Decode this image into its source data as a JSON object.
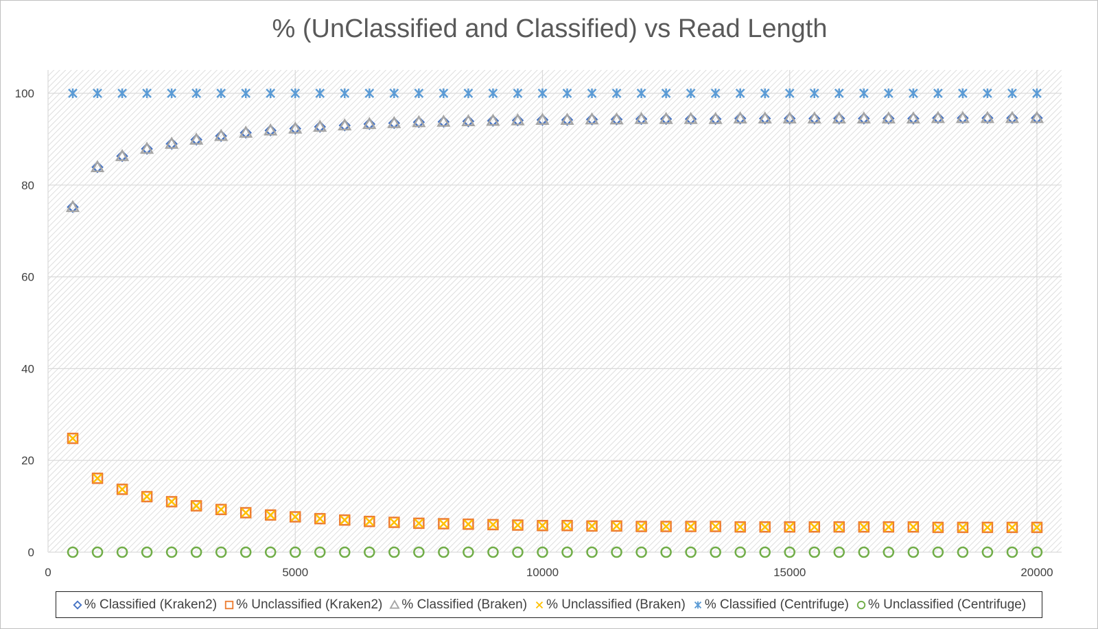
{
  "chart_data": {
    "type": "scatter",
    "title": "% (UnClassified and Classified) vs Read Length",
    "xlabel": "",
    "ylabel": "",
    "xlim": [
      0,
      20500
    ],
    "ylim": [
      0,
      105
    ],
    "x_ticks": [
      0,
      5000,
      10000,
      15000,
      20000
    ],
    "y_ticks": [
      0,
      20,
      40,
      60,
      80,
      100
    ],
    "grid": true,
    "legend_position": "bottom",
    "x": [
      500,
      1000,
      1500,
      2000,
      2500,
      3000,
      3500,
      4000,
      4500,
      5000,
      5500,
      6000,
      6500,
      7000,
      7500,
      8000,
      8500,
      9000,
      9500,
      10000,
      10500,
      11000,
      11500,
      12000,
      12500,
      13000,
      13500,
      14000,
      14500,
      15000,
      15500,
      16000,
      16500,
      17000,
      17500,
      18000,
      18500,
      19000,
      19500,
      20000
    ],
    "series": [
      {
        "name": "% Classified (Kraken2)",
        "marker": "diamond",
        "color": "#4472c4",
        "values": [
          75.2,
          83.9,
          86.3,
          87.9,
          89.0,
          89.9,
          90.7,
          91.4,
          91.9,
          92.3,
          92.7,
          93.0,
          93.3,
          93.5,
          93.7,
          93.8,
          93.9,
          94.0,
          94.1,
          94.2,
          94.2,
          94.3,
          94.3,
          94.4,
          94.4,
          94.4,
          94.4,
          94.5,
          94.5,
          94.5,
          94.5,
          94.5,
          94.5,
          94.5,
          94.5,
          94.6,
          94.6,
          94.6,
          94.6,
          94.6
        ]
      },
      {
        "name": "% Unclassified (Kraken2)",
        "marker": "square",
        "color": "#ed7d31",
        "values": [
          24.8,
          16.1,
          13.7,
          12.1,
          11.0,
          10.1,
          9.3,
          8.6,
          8.1,
          7.7,
          7.3,
          7.0,
          6.7,
          6.5,
          6.3,
          6.2,
          6.1,
          6.0,
          5.9,
          5.8,
          5.8,
          5.7,
          5.7,
          5.6,
          5.6,
          5.6,
          5.6,
          5.5,
          5.5,
          5.5,
          5.5,
          5.5,
          5.5,
          5.5,
          5.5,
          5.4,
          5.4,
          5.4,
          5.4,
          5.4
        ]
      },
      {
        "name": "% Classified (Braken)",
        "marker": "triangle",
        "color": "#a5a5a5",
        "values": [
          75.2,
          83.9,
          86.3,
          87.9,
          89.0,
          89.9,
          90.7,
          91.4,
          91.9,
          92.3,
          92.7,
          93.0,
          93.3,
          93.5,
          93.7,
          93.8,
          93.9,
          94.0,
          94.1,
          94.2,
          94.2,
          94.3,
          94.3,
          94.4,
          94.4,
          94.4,
          94.4,
          94.5,
          94.5,
          94.5,
          94.5,
          94.5,
          94.5,
          94.5,
          94.5,
          94.6,
          94.6,
          94.6,
          94.6,
          94.6
        ]
      },
      {
        "name": "% Unclassified (Braken)",
        "marker": "x",
        "color": "#ffc000",
        "values": [
          24.8,
          16.1,
          13.7,
          12.1,
          11.0,
          10.1,
          9.3,
          8.6,
          8.1,
          7.7,
          7.3,
          7.0,
          6.7,
          6.5,
          6.3,
          6.2,
          6.1,
          6.0,
          5.9,
          5.8,
          5.8,
          5.7,
          5.7,
          5.6,
          5.6,
          5.6,
          5.6,
          5.5,
          5.5,
          5.5,
          5.5,
          5.5,
          5.5,
          5.5,
          5.5,
          5.4,
          5.4,
          5.4,
          5.4,
          5.4
        ]
      },
      {
        "name": "% Classified (Centrifuge)",
        "marker": "star",
        "color": "#5b9bd5",
        "values": [
          100,
          100,
          100,
          100,
          100,
          100,
          100,
          100,
          100,
          100,
          100,
          100,
          100,
          100,
          100,
          100,
          100,
          100,
          100,
          100,
          100,
          100,
          100,
          100,
          100,
          100,
          100,
          100,
          100,
          100,
          100,
          100,
          100,
          100,
          100,
          100,
          100,
          100,
          100,
          100
        ]
      },
      {
        "name": "% Unclassified (Centrifuge)",
        "marker": "circle",
        "color": "#70ad47",
        "values": [
          0,
          0,
          0,
          0,
          0,
          0,
          0,
          0,
          0,
          0,
          0,
          0,
          0,
          0,
          0,
          0,
          0,
          0,
          0,
          0,
          0,
          0,
          0,
          0,
          0,
          0,
          0,
          0,
          0,
          0,
          0,
          0,
          0,
          0,
          0,
          0,
          0,
          0,
          0,
          0
        ]
      }
    ]
  }
}
